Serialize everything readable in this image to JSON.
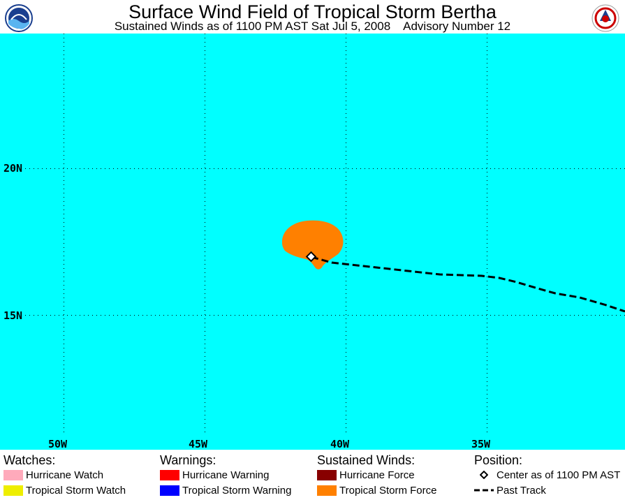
{
  "header": {
    "title": "Surface Wind Field of Tropical Storm Bertha",
    "subtitle": "Sustained Winds as of 1100 PM AST Sat Jul 5, 2008    Advisory Number 12",
    "logos": [
      "noaa-logo-icon",
      "nws-logo-icon"
    ]
  },
  "map": {
    "background_color": "#00ffff",
    "lat_labels": [
      "20N",
      "15N"
    ],
    "lon_labels": [
      "50W",
      "45W",
      "40W",
      "35W"
    ],
    "storm_center": {
      "lon": -41.1,
      "lat": 17.0
    },
    "past_track": [
      {
        "lon": -41.1,
        "lat": 17.0
      },
      {
        "lon": -38.0,
        "lat": 16.7
      },
      {
        "lon": -34.8,
        "lat": 16.4
      },
      {
        "lon": -32.5,
        "lat": 15.8
      },
      {
        "lon": -30.5,
        "lat": 15.2
      }
    ],
    "wind_field_colors": {
      "tropical_storm_force": "#ff8000"
    }
  },
  "legend": {
    "watches": {
      "heading": "Watches:",
      "items": [
        {
          "label": "Hurricane Watch",
          "color": "#ffaabb"
        },
        {
          "label": "Tropical Storm Watch",
          "color": "#eeee00"
        }
      ]
    },
    "warnings": {
      "heading": "Warnings:",
      "items": [
        {
          "label": "Hurricane Warning",
          "color": "#ff0000"
        },
        {
          "label": "Tropical Storm Warning",
          "color": "#0000ff"
        }
      ]
    },
    "winds": {
      "heading": "Sustained Winds:",
      "items": [
        {
          "label": "Hurricane Force",
          "color": "#880000"
        },
        {
          "label": "Tropical Storm Force",
          "color": "#ff8000"
        }
      ]
    },
    "position": {
      "heading": "Position:",
      "center_label": "Center as of 1100 PM AST",
      "track_label": "Past Track"
    }
  }
}
